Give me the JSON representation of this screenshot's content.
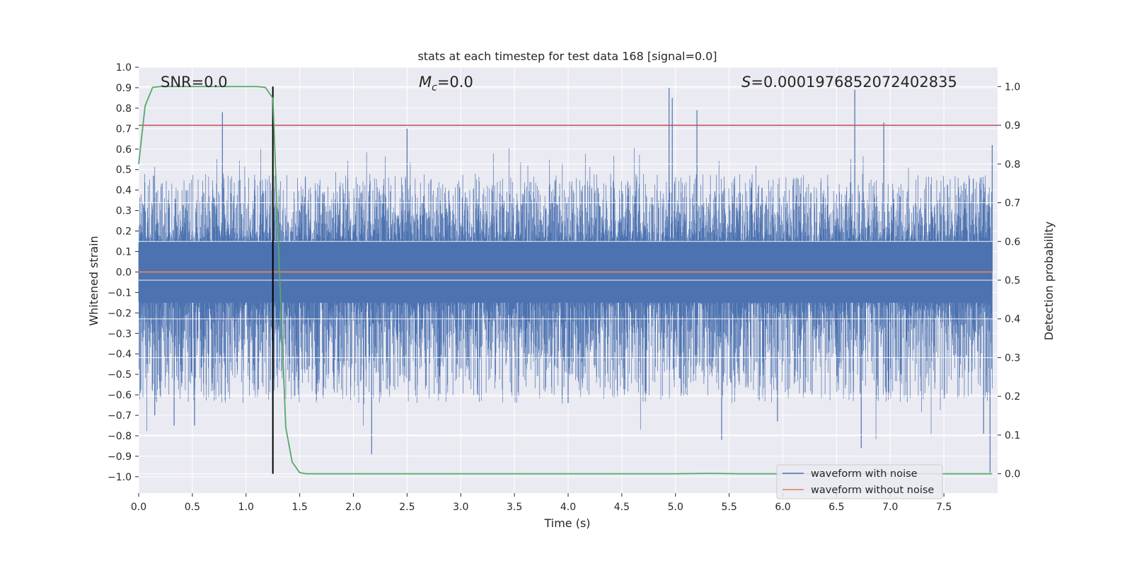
{
  "chart_data": {
    "type": "line",
    "title": "stats at each timestep for test data 168 [signal=0.0]",
    "xlabel": "Time (s)",
    "ylabel_left": "Whitened strain",
    "ylabel_right": "Detection probability",
    "xlim": [
      0.0,
      8.0
    ],
    "ylim_left": [
      -1.08,
      1.0
    ],
    "ylim_right": [
      -0.05,
      1.05
    ],
    "x_ticks": [
      "0.0",
      "0.5",
      "1.0",
      "1.5",
      "2.0",
      "2.5",
      "3.0",
      "3.5",
      "4.0",
      "4.5",
      "5.0",
      "5.5",
      "6.0",
      "6.5",
      "7.0",
      "7.5"
    ],
    "y_ticks_left": [
      "1.0",
      "0.9",
      "0.8",
      "0.7",
      "0.6",
      "0.5",
      "0.4",
      "0.3",
      "0.2",
      "0.1",
      "0.0",
      "−0.1",
      "−0.2",
      "−0.3",
      "−0.4",
      "−0.5",
      "−0.6",
      "−0.7",
      "−0.8",
      "−0.9",
      "−1.0"
    ],
    "y_ticks_right": [
      "1.0",
      "0.9",
      "0.8",
      "0.7",
      "0.6",
      "0.5",
      "0.4",
      "0.3",
      "0.2",
      "0.1",
      "0.0"
    ],
    "annotations": {
      "snr": "SNR=0.0",
      "mc_symbol": "M",
      "mc_sub": "c",
      "mc_value": "=0.0",
      "s_symbol": "S",
      "s_value": "=0.0001976852072402835"
    },
    "legend": [
      "waveform with noise",
      "waveform without noise"
    ],
    "threshold_probability": 0.9,
    "marker_time": 1.25,
    "noise_envelope": {
      "upper_typical": 0.42,
      "lower_typical": -0.42,
      "upper_spikes": [
        [
          0.78,
          0.78
        ],
        [
          2.5,
          0.7
        ],
        [
          4.94,
          0.9
        ],
        [
          4.97,
          0.85
        ],
        [
          5.2,
          0.79
        ],
        [
          6.67,
          0.89
        ],
        [
          6.94,
          0.73
        ],
        [
          7.95,
          0.62
        ]
      ],
      "lower_spikes": [
        [
          0.15,
          -0.7
        ],
        [
          0.33,
          -0.75
        ],
        [
          0.52,
          -0.75
        ],
        [
          2.17,
          -0.89
        ],
        [
          4.0,
          -0.64
        ],
        [
          5.43,
          -0.82
        ],
        [
          5.95,
          -0.73
        ],
        [
          6.73,
          -0.86
        ],
        [
          7.93,
          -0.98
        ],
        [
          7.87,
          -0.79
        ]
      ]
    },
    "series": [
      {
        "name": "waveform with noise",
        "color": "#4c72b0",
        "axis": "left"
      },
      {
        "name": "waveform without noise",
        "color": "#dd8452",
        "axis": "left",
        "constant": 0.0
      },
      {
        "name": "detection probability",
        "color": "#55a868",
        "axis": "right",
        "x": [
          0.0,
          0.06,
          0.13,
          0.2,
          0.3,
          0.5,
          0.8,
          1.0,
          1.1,
          1.18,
          1.25,
          1.3,
          1.37,
          1.43,
          1.5,
          1.56,
          1.65,
          2.0,
          3.0,
          4.0,
          5.0,
          5.3,
          5.6,
          6.0,
          7.0,
          7.95
        ],
        "values": [
          0.8,
          0.95,
          0.998,
          1.0,
          1.0,
          1.0,
          1.0,
          1.0,
          1.0,
          0.998,
          0.97,
          0.6,
          0.12,
          0.03,
          0.003,
          0.0,
          0.0,
          0.0,
          0.0,
          0.0,
          0.0,
          0.001,
          0.0,
          0.0,
          0.0,
          0.0
        ]
      }
    ],
    "colors": {
      "plot_bg": "#eaeaf2",
      "grid": "#ffffff",
      "threshold": "#c44e52",
      "marker": "#000000"
    }
  }
}
